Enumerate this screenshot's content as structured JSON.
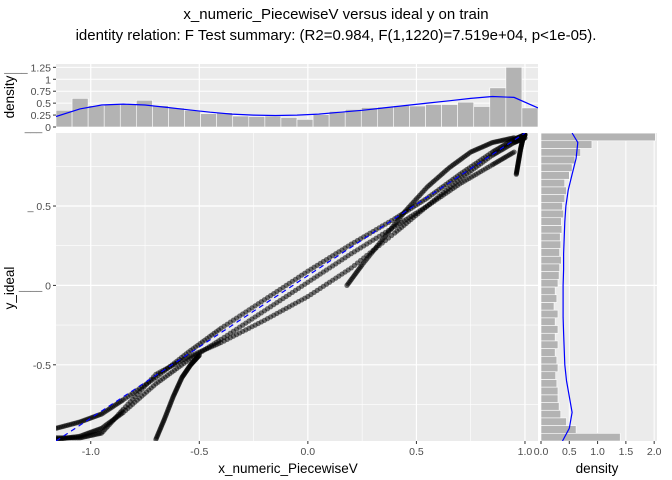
{
  "chart_data": {
    "type": "scatter",
    "title": "x_numeric_PiecewiseV versus ideal y on train",
    "subtitle": "identity relation: F Test summary: (R2=0.984, F(1,1220)=7.519e+04, p<1e-05).",
    "xlabel": "x_numeric_PiecewiseV",
    "ylabel": "y_ideal",
    "xlim": [
      -1.16,
      1.06
    ],
    "ylim": [
      -0.98,
      0.96
    ],
    "x_ticks": [
      -1.0,
      -0.5,
      0.0,
      0.5,
      1.0
    ],
    "x_tick_labels": [
      "-1.0",
      "-0.5",
      "0.0",
      "0.5",
      "1.0"
    ],
    "y_ticks": [
      0.5,
      0.0,
      -0.5
    ],
    "y_tick_labels": [
      "_ 0.5",
      "____ 0",
      "-0.5"
    ],
    "grid": true,
    "point_color": "#000000",
    "smooth_color": "#0000ff",
    "reference_line": {
      "style": "dashed",
      "color": "#0000ff",
      "x": [
        -1.16,
        1.0
      ],
      "y": [
        -0.98,
        0.96
      ]
    },
    "series": [
      {
        "x": [
          -1.16,
          -1.05,
          -0.95,
          -0.85,
          -0.7,
          -0.55,
          -0.4,
          -0.2,
          0.0,
          0.2,
          0.4,
          0.55,
          0.7,
          0.85,
          0.95,
          1.0
        ],
        "y": [
          -0.97,
          -0.95,
          -0.9,
          -0.8,
          -0.62,
          -0.47,
          -0.34,
          -0.16,
          0.02,
          0.2,
          0.37,
          0.5,
          0.67,
          0.82,
          0.9,
          0.93
        ]
      },
      {
        "x": [
          -1.16,
          -1.05,
          -0.95,
          -0.85,
          -0.7,
          -0.55,
          -0.4,
          -0.2,
          0.0,
          0.2,
          0.4,
          0.55,
          0.7,
          0.85,
          0.95,
          1.0
        ],
        "y": [
          -0.9,
          -0.86,
          -0.81,
          -0.72,
          -0.58,
          -0.42,
          -0.27,
          -0.09,
          0.09,
          0.26,
          0.42,
          0.55,
          0.7,
          0.84,
          0.92,
          0.95
        ]
      },
      {
        "x": [
          -1.16,
          -1.05,
          -0.95,
          -0.85,
          -0.7,
          -0.55,
          -0.4,
          -0.2,
          0.0,
          0.2,
          0.4,
          0.55,
          0.7,
          0.85,
          0.95
        ],
        "y": [
          -0.96,
          -0.96,
          -0.93,
          -0.78,
          -0.56,
          -0.45,
          -0.36,
          -0.22,
          -0.07,
          0.11,
          0.33,
          0.5,
          0.64,
          0.76,
          0.84
        ]
      },
      {
        "x": [
          -0.7,
          -0.66,
          -0.62,
          -0.58,
          -0.54,
          -0.5
        ],
        "y": [
          -0.97,
          -0.84,
          -0.7,
          -0.58,
          -0.5,
          -0.44
        ]
      },
      {
        "x": [
          0.18,
          0.25,
          0.35,
          0.45,
          0.55,
          0.65,
          0.75,
          0.85,
          0.95
        ],
        "y": [
          0.0,
          0.13,
          0.3,
          0.47,
          0.62,
          0.74,
          0.84,
          0.9,
          0.93
        ]
      },
      {
        "x": [
          0.96,
          0.97,
          0.98,
          0.99,
          1.0
        ],
        "y": [
          0.7,
          0.78,
          0.86,
          0.92,
          0.95
        ]
      }
    ],
    "top_marginal": {
      "ylabel": "density",
      "y_ticks": [
        0,
        0.25,
        0.5,
        0.75,
        1.0,
        1.25
      ],
      "y_tick_labels": [
        "___ 0",
        "0.25",
        "0.5",
        "0.75",
        "1",
        "____ 1.25"
      ],
      "bin_width": 0.074,
      "bin_centers": [
        -1.123,
        -1.049,
        -0.975,
        -0.901,
        -0.827,
        -0.753,
        -0.679,
        -0.605,
        -0.531,
        -0.457,
        -0.383,
        -0.309,
        -0.235,
        -0.161,
        -0.087,
        -0.013,
        0.061,
        0.135,
        0.209,
        0.283,
        0.357,
        0.431,
        0.505,
        0.579,
        0.653,
        0.727,
        0.801,
        0.875,
        0.949,
        1.023
      ],
      "densities": [
        0.35,
        0.6,
        0.45,
        0.47,
        0.48,
        0.56,
        0.45,
        0.4,
        0.35,
        0.28,
        0.3,
        0.23,
        0.22,
        0.23,
        0.2,
        0.16,
        0.26,
        0.33,
        0.37,
        0.41,
        0.42,
        0.45,
        0.44,
        0.47,
        0.47,
        0.52,
        0.43,
        0.82,
        1.25,
        0.4
      ],
      "density_x": [
        -1.16,
        -1.05,
        -0.95,
        -0.85,
        -0.75,
        -0.65,
        -0.55,
        -0.45,
        -0.35,
        -0.25,
        -0.15,
        -0.05,
        0.05,
        0.15,
        0.25,
        0.35,
        0.45,
        0.55,
        0.65,
        0.75,
        0.85,
        0.95,
        1.06
      ],
      "density_y": [
        0.22,
        0.38,
        0.46,
        0.48,
        0.46,
        0.41,
        0.36,
        0.31,
        0.27,
        0.25,
        0.24,
        0.25,
        0.27,
        0.31,
        0.35,
        0.4,
        0.45,
        0.5,
        0.55,
        0.6,
        0.64,
        0.62,
        0.4
      ]
    },
    "right_marginal": {
      "xlabel": "density",
      "x_ticks": [
        0.0,
        0.5,
        1.0,
        1.5,
        2.0
      ],
      "x_tick_labels": [
        "0.0",
        "0.5",
        "1.0",
        "1.5",
        "2.0"
      ],
      "bin_width": 0.0485,
      "bin_centers": [
        0.935,
        0.887,
        0.838,
        0.79,
        0.741,
        0.693,
        0.644,
        0.596,
        0.547,
        0.499,
        0.45,
        0.402,
        0.353,
        0.305,
        0.256,
        0.208,
        0.159,
        0.111,
        0.062,
        0.014,
        -0.035,
        -0.083,
        -0.132,
        -0.18,
        -0.229,
        -0.277,
        -0.326,
        -0.374,
        -0.423,
        -0.471,
        -0.52,
        -0.568,
        -0.617,
        -0.665,
        -0.714,
        -0.762,
        -0.811,
        -0.859,
        -0.908,
        -0.956
      ],
      "densities": [
        2.02,
        0.9,
        0.7,
        0.6,
        0.55,
        0.5,
        0.42,
        0.45,
        0.42,
        0.38,
        0.4,
        0.36,
        0.37,
        0.34,
        0.35,
        0.33,
        0.36,
        0.33,
        0.32,
        0.3,
        0.25,
        0.28,
        0.23,
        0.3,
        0.25,
        0.3,
        0.25,
        0.3,
        0.25,
        0.28,
        0.3,
        0.26,
        0.28,
        0.3,
        0.3,
        0.32,
        0.35,
        0.45,
        0.62,
        1.4
      ],
      "density_y": [
        0.96,
        0.9,
        0.8,
        0.7,
        0.6,
        0.5,
        0.4,
        0.3,
        0.2,
        0.1,
        0.0,
        -0.1,
        -0.2,
        -0.3,
        -0.4,
        -0.5,
        -0.6,
        -0.7,
        -0.8,
        -0.9,
        -0.98
      ],
      "density_x": [
        0.55,
        0.65,
        0.62,
        0.55,
        0.48,
        0.44,
        0.42,
        0.41,
        0.4,
        0.4,
        0.39,
        0.39,
        0.39,
        0.4,
        0.41,
        0.42,
        0.45,
        0.5,
        0.55,
        0.5,
        0.38
      ]
    }
  }
}
